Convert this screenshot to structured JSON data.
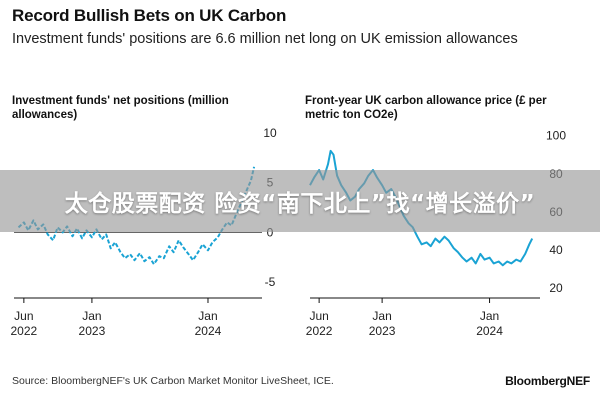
{
  "header": {
    "title": "Record Bullish Bets on UK Carbon",
    "subtitle": "Investment funds' positions are 6.6 million net long on UK emission allowances"
  },
  "banner": {
    "text": "太仓股票配资 险资“南下北上”找“增长溢价”"
  },
  "footer": {
    "source": "Source: BloombergNEF's UK Carbon Market Monitor LiveSheet, ICE.",
    "brand": "BloombergNEF"
  },
  "colors": {
    "line": "#1aa3d4",
    "axis": "#111111",
    "text": "#111111"
  },
  "chart_data": [
    {
      "type": "line",
      "title": "Investment funds' net positions (million allowances)",
      "xlabel": "",
      "ylabel": "",
      "x_ticks": [
        {
          "date": "2022-06-01",
          "label1": "Jun",
          "label2": "2022"
        },
        {
          "date": "2023-01-01",
          "label1": "Jan",
          "label2": "2023"
        },
        {
          "date": "2024-01-01",
          "label1": "Jan",
          "label2": "2024"
        }
      ],
      "y_ticks": [
        10,
        5,
        0,
        -5
      ],
      "xlim": [
        "2022-05-01",
        "2024-05-31"
      ],
      "ylim": [
        -6,
        10.5
      ],
      "axis_side": "right",
      "line_style": "dashed",
      "zero_line": true,
      "series": [
        {
          "points": [
            [
              "2022-05-15",
              0.5
            ],
            [
              "2022-06-01",
              1.0
            ],
            [
              "2022-06-15",
              0.2
            ],
            [
              "2022-07-01",
              1.2
            ],
            [
              "2022-07-15",
              0.3
            ],
            [
              "2022-08-01",
              0.8
            ],
            [
              "2022-08-15",
              -0.2
            ],
            [
              "2022-09-01",
              -0.8
            ],
            [
              "2022-09-15",
              0.5
            ],
            [
              "2022-10-01",
              0.0
            ],
            [
              "2022-10-15",
              0.6
            ],
            [
              "2022-11-01",
              -0.4
            ],
            [
              "2022-11-15",
              0.4
            ],
            [
              "2022-12-01",
              -0.6
            ],
            [
              "2022-12-15",
              0.2
            ],
            [
              "2023-01-01",
              -0.5
            ],
            [
              "2023-01-15",
              0.3
            ],
            [
              "2023-02-01",
              -0.7
            ],
            [
              "2023-02-15",
              -0.2
            ],
            [
              "2023-03-01",
              -1.6
            ],
            [
              "2023-03-15",
              -1.0
            ],
            [
              "2023-04-01",
              -2.0
            ],
            [
              "2023-04-15",
              -2.6
            ],
            [
              "2023-05-01",
              -2.2
            ],
            [
              "2023-05-15",
              -2.8
            ],
            [
              "2023-06-01",
              -2.1
            ],
            [
              "2023-06-15",
              -2.9
            ],
            [
              "2023-07-01",
              -2.5
            ],
            [
              "2023-07-15",
              -3.2
            ],
            [
              "2023-08-01",
              -2.4
            ],
            [
              "2023-08-15",
              -2.6
            ],
            [
              "2023-09-01",
              -1.4
            ],
            [
              "2023-09-15",
              -2.0
            ],
            [
              "2023-10-01",
              -0.8
            ],
            [
              "2023-10-15",
              -1.5
            ],
            [
              "2023-11-01",
              -2.2
            ],
            [
              "2023-11-15",
              -2.8
            ],
            [
              "2023-12-01",
              -2.0
            ],
            [
              "2023-12-15",
              -1.2
            ],
            [
              "2024-01-01",
              -1.8
            ],
            [
              "2024-01-15",
              -1.0
            ],
            [
              "2024-02-01",
              -0.5
            ],
            [
              "2024-02-15",
              0.3
            ],
            [
              "2024-03-01",
              1.0
            ],
            [
              "2024-03-15",
              0.7
            ],
            [
              "2024-04-01",
              2.0
            ],
            [
              "2024-04-15",
              3.0
            ],
            [
              "2024-05-01",
              4.2
            ],
            [
              "2024-05-15",
              5.2
            ],
            [
              "2024-05-25",
              6.6
            ]
          ]
        }
      ]
    },
    {
      "type": "line",
      "title": "Front-year UK carbon allowance price (£ per metric ton CO2e)",
      "xlabel": "",
      "ylabel": "",
      "x_ticks": [
        {
          "date": "2022-06-01",
          "label1": "Jun",
          "label2": "2022"
        },
        {
          "date": "2023-01-01",
          "label1": "Jan",
          "label2": "2023"
        },
        {
          "date": "2024-01-01",
          "label1": "Jan",
          "label2": "2024"
        }
      ],
      "y_ticks": [
        100,
        80,
        60,
        40,
        20
      ],
      "xlim": [
        "2022-05-01",
        "2024-05-31"
      ],
      "ylim": [
        18,
        104
      ],
      "axis_side": "right",
      "line_style": "solid",
      "series": [
        {
          "points": [
            [
              "2022-05-01",
              74
            ],
            [
              "2022-05-15",
              78
            ],
            [
              "2022-06-01",
              82
            ],
            [
              "2022-06-15",
              77
            ],
            [
              "2022-07-01",
              85
            ],
            [
              "2022-07-10",
              92
            ],
            [
              "2022-07-20",
              90
            ],
            [
              "2022-08-01",
              79
            ],
            [
              "2022-08-15",
              74
            ],
            [
              "2022-09-01",
              70
            ],
            [
              "2022-09-15",
              66
            ],
            [
              "2022-10-01",
              68
            ],
            [
              "2022-10-15",
              72
            ],
            [
              "2022-11-01",
              75
            ],
            [
              "2022-11-15",
              79
            ],
            [
              "2022-12-01",
              82
            ],
            [
              "2022-12-15",
              78
            ],
            [
              "2023-01-01",
              74
            ],
            [
              "2023-01-15",
              70
            ],
            [
              "2023-02-01",
              72
            ],
            [
              "2023-02-15",
              68
            ],
            [
              "2023-03-01",
              63
            ],
            [
              "2023-03-15",
              58
            ],
            [
              "2023-04-01",
              54
            ],
            [
              "2023-04-15",
              52
            ],
            [
              "2023-05-01",
              47
            ],
            [
              "2023-05-15",
              43
            ],
            [
              "2023-06-01",
              44
            ],
            [
              "2023-06-15",
              42
            ],
            [
              "2023-07-01",
              46
            ],
            [
              "2023-07-15",
              44
            ],
            [
              "2023-08-01",
              47
            ],
            [
              "2023-08-15",
              45
            ],
            [
              "2023-09-01",
              41
            ],
            [
              "2023-09-15",
              39
            ],
            [
              "2023-10-01",
              36
            ],
            [
              "2023-10-15",
              34
            ],
            [
              "2023-11-01",
              36
            ],
            [
              "2023-11-15",
              33
            ],
            [
              "2023-12-01",
              38
            ],
            [
              "2023-12-15",
              35
            ],
            [
              "2024-01-01",
              36
            ],
            [
              "2024-01-15",
              33
            ],
            [
              "2024-02-01",
              34
            ],
            [
              "2024-02-15",
              32
            ],
            [
              "2024-03-01",
              34
            ],
            [
              "2024-03-15",
              33
            ],
            [
              "2024-04-01",
              35
            ],
            [
              "2024-04-15",
              34
            ],
            [
              "2024-05-01",
              38
            ],
            [
              "2024-05-15",
              43
            ],
            [
              "2024-05-25",
              46
            ]
          ]
        }
      ]
    }
  ]
}
